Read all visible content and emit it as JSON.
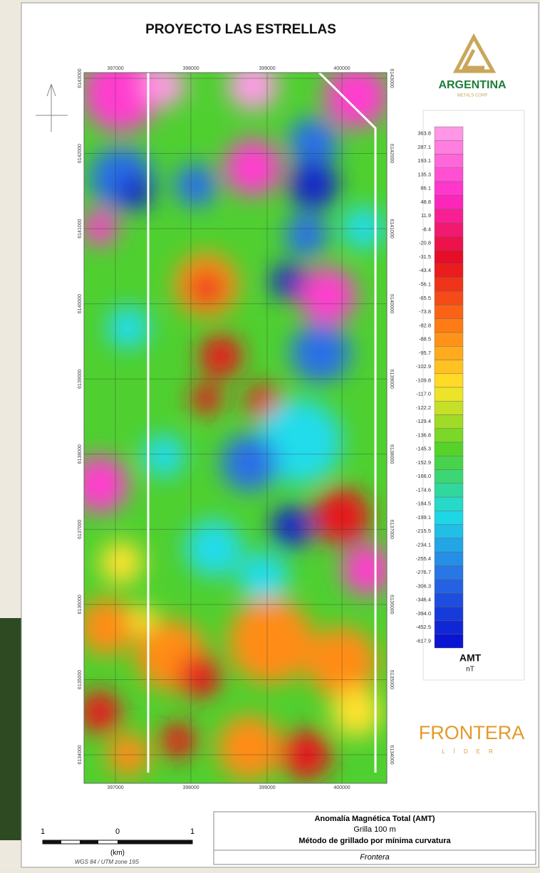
{
  "header": {
    "title": "PROYECTO LAS ESTRELLAS"
  },
  "logo": {
    "name": "ARGENTINA",
    "subtitle": "METALS CORP"
  },
  "map": {
    "x_labels": [
      "397000",
      "398000",
      "399000",
      "400000"
    ],
    "y_labels": [
      "6143000",
      "6142000",
      "6141000",
      "6140000",
      "6139000",
      "6138000",
      "6137000",
      "6136000",
      "6135000",
      "6134000"
    ]
  },
  "legend": {
    "labels": [
      "363.8",
      "287.1",
      "193.1",
      "135.3",
      "86.1",
      "48.8",
      "11.9",
      "-8.4",
      "-20.8",
      "-31.5",
      "-43.4",
      "-56.1",
      "-65.5",
      "-73.8",
      "-82.8",
      "-88.5",
      "-95.7",
      "-102.9",
      "-109.8",
      "-117.0",
      "-122.2",
      "-129.4",
      "-136.8",
      "-145.3",
      "-152.9",
      "-166.0",
      "-174.6",
      "-184.5",
      "-199.1",
      "-215.5",
      "-234.1",
      "-255.4",
      "-276.7",
      "-306.3",
      "-346.4",
      "-394.0",
      "-452.5",
      "-617.9"
    ],
    "unit_title": "AMT",
    "unit": "nT"
  },
  "brand": {
    "name": "FRONTERA",
    "sub": "LÍDER"
  },
  "scale": {
    "labels": [
      "1",
      "0",
      "1"
    ],
    "unit": "(km)",
    "datum": "WGS 84 / UTM zone 19S"
  },
  "info": {
    "lines": [
      "Anomalía Magnética Total (AMT)",
      "Grilla 100 m",
      "Método de grillado por mínima curvatura"
    ],
    "company": "Frontera"
  }
}
